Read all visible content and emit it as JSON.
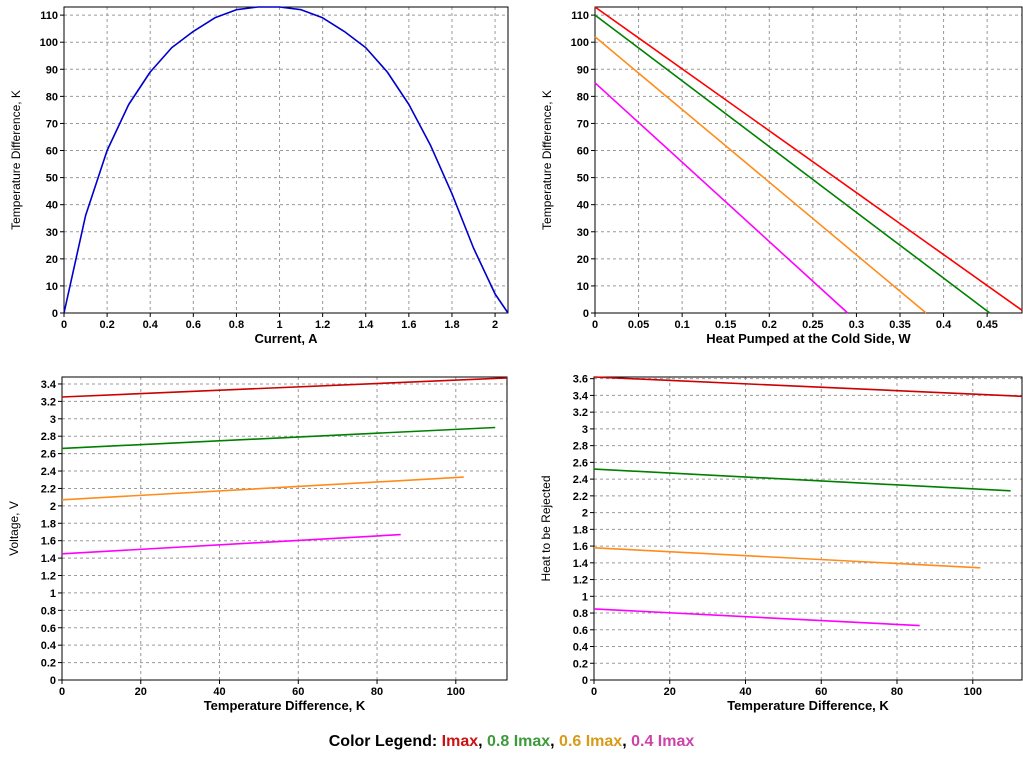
{
  "chart_data": [
    {
      "type": "line",
      "xlabel": "Current, A",
      "ylabel": "Temperature Difference, K",
      "xlim": [
        0,
        2.06
      ],
      "ylim": [
        0,
        113
      ],
      "xticks": [
        0,
        0.2,
        0.4,
        0.6,
        0.8,
        1,
        1.2,
        1.4,
        1.6,
        1.8,
        2
      ],
      "xtick_labels": [
        "0",
        "0.2",
        "0.4",
        "0.6",
        "0.8",
        "1",
        "1.2",
        "1.4",
        "1.6",
        "1.8",
        "2"
      ],
      "yticks": [
        0,
        10,
        20,
        30,
        40,
        50,
        60,
        70,
        80,
        90,
        100,
        110
      ],
      "ytick_labels": [
        "0",
        "10",
        "20",
        "30",
        "40",
        "50",
        "60",
        "70",
        "80",
        "90",
        "100",
        "110"
      ],
      "grid": true,
      "series": [
        {
          "color": "#0000cc",
          "x": [
            0,
            0.1,
            0.2,
            0.3,
            0.4,
            0.5,
            0.6,
            0.7,
            0.8,
            0.9,
            1.0,
            1.1,
            1.2,
            1.3,
            1.4,
            1.5,
            1.6,
            1.7,
            1.8,
            1.9,
            2.0,
            2.06
          ],
          "y": [
            0,
            36,
            60,
            77,
            89,
            98,
            104,
            109,
            112,
            113,
            113,
            112,
            109,
            104,
            98,
            89,
            77,
            62,
            44,
            24,
            7,
            0
          ]
        }
      ]
    },
    {
      "type": "line",
      "xlabel": "Heat Pumped at the Cold Side, W",
      "ylabel": "Temperature Difference, K",
      "xlim": [
        0,
        0.49
      ],
      "ylim": [
        0,
        113
      ],
      "xticks": [
        0,
        0.05,
        0.1,
        0.15,
        0.2,
        0.25,
        0.3,
        0.35,
        0.4,
        0.45
      ],
      "xtick_labels": [
        "0",
        "0.05",
        "0.1",
        "0.15",
        "0.2",
        "0.25",
        "0.3",
        "0.35",
        "0.4",
        "0.45"
      ],
      "yticks": [
        0,
        10,
        20,
        30,
        40,
        50,
        60,
        70,
        80,
        90,
        100,
        110
      ],
      "ytick_labels": [
        "0",
        "10",
        "20",
        "30",
        "40",
        "50",
        "60",
        "70",
        "80",
        "90",
        "100",
        "110"
      ],
      "grid": true,
      "series": [
        {
          "color": "#ff0000",
          "x": [
            0,
            0.49
          ],
          "y": [
            113,
            1
          ]
        },
        {
          "color": "#008000",
          "x": [
            0,
            0.453
          ],
          "y": [
            110,
            0
          ]
        },
        {
          "color": "#ff8c1a",
          "x": [
            0,
            0.38
          ],
          "y": [
            102,
            0
          ]
        },
        {
          "color": "#ff00ff",
          "x": [
            0,
            0.29
          ],
          "y": [
            85,
            0
          ]
        }
      ]
    },
    {
      "type": "line",
      "xlabel": "Temperature Difference, K",
      "ylabel": "Voltage, V",
      "xlim": [
        0,
        113
      ],
      "ylim": [
        0,
        3.48
      ],
      "xticks": [
        0,
        20,
        40,
        60,
        80,
        100
      ],
      "xtick_labels": [
        "0",
        "20",
        "40",
        "60",
        "80",
        "100"
      ],
      "yticks": [
        0,
        0.2,
        0.4,
        0.6,
        0.8,
        1,
        1.2,
        1.4,
        1.6,
        1.8,
        2,
        2.2,
        2.4,
        2.6,
        2.8,
        3,
        3.2,
        3.4
      ],
      "ytick_labels": [
        "0",
        "0.2",
        "0.4",
        "0.6",
        "0.8",
        "1",
        "1.2",
        "1.4",
        "1.6",
        "1.8",
        "2",
        "2.2",
        "2.4",
        "2.6",
        "2.8",
        "3",
        "3.2",
        "3.4"
      ],
      "grid": true,
      "series": [
        {
          "color": "#cc0000",
          "x": [
            0,
            113
          ],
          "y": [
            3.25,
            3.47
          ]
        },
        {
          "color": "#008000",
          "x": [
            0,
            110
          ],
          "y": [
            2.66,
            2.9
          ]
        },
        {
          "color": "#ff8c1a",
          "x": [
            0,
            102
          ],
          "y": [
            2.07,
            2.33
          ]
        },
        {
          "color": "#ff00ff",
          "x": [
            0,
            86
          ],
          "y": [
            1.45,
            1.67
          ]
        }
      ]
    },
    {
      "type": "line",
      "xlabel": "Temperature Difference, K",
      "ylabel": "Heat to be Rejected",
      "xlim": [
        0,
        113
      ],
      "ylim": [
        0,
        3.62
      ],
      "xticks": [
        0,
        20,
        40,
        60,
        80,
        100
      ],
      "xtick_labels": [
        "0",
        "20",
        "40",
        "60",
        "80",
        "100"
      ],
      "yticks": [
        0,
        0.2,
        0.4,
        0.6,
        0.8,
        1,
        1.2,
        1.4,
        1.6,
        1.8,
        2,
        2.2,
        2.4,
        2.6,
        2.8,
        3,
        3.2,
        3.4,
        3.6
      ],
      "ytick_labels": [
        "0",
        "0.2",
        "0.4",
        "0.6",
        "0.8",
        "1",
        "1.2",
        "1.4",
        "1.6",
        "1.8",
        "2",
        "2.2",
        "2.4",
        "2.6",
        "2.8",
        "3",
        "3.2",
        "3.4",
        "3.6"
      ],
      "grid": true,
      "series": [
        {
          "color": "#cc0000",
          "x": [
            0,
            113
          ],
          "y": [
            3.62,
            3.39
          ]
        },
        {
          "color": "#008000",
          "x": [
            0,
            110
          ],
          "y": [
            2.52,
            2.26
          ]
        },
        {
          "color": "#ff8c1a",
          "x": [
            0,
            102
          ],
          "y": [
            1.58,
            1.34
          ]
        },
        {
          "color": "#ff00ff",
          "x": [
            0,
            86
          ],
          "y": [
            0.85,
            0.65
          ]
        }
      ]
    }
  ],
  "legend": {
    "prefix": "Color Legend: ",
    "entries": [
      {
        "label": "Imax",
        "color": "#cc1111"
      },
      {
        "label": "0.8 Imax",
        "color": "#3c9a3c"
      },
      {
        "label": "0.6 Imax",
        "color": "#d99a1a"
      },
      {
        "label": "0.4 Imax",
        "color": "#cc44aa"
      }
    ],
    "separator": ", "
  }
}
